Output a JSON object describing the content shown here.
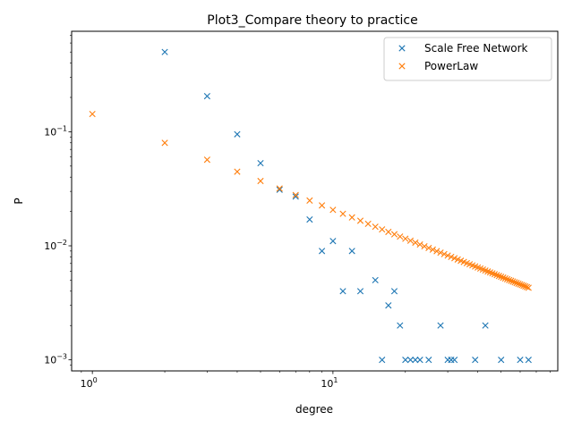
{
  "chart_data": {
    "type": "scatter",
    "title": "Plot3_Compare theory to practice",
    "xlabel": "degree",
    "ylabel": "P",
    "xscale": "log",
    "yscale": "log",
    "xlim": [
      0.82,
      86
    ],
    "ylim": [
      0.0008,
      0.76
    ],
    "grid": false,
    "legend_position": "top-right",
    "xticks": [
      {
        "value": 1,
        "base": "10",
        "exp": "0"
      },
      {
        "value": 10,
        "base": "10",
        "exp": "1"
      }
    ],
    "yticks": [
      {
        "value": 0.001,
        "base": "10",
        "exp": "−3"
      },
      {
        "value": 0.01,
        "base": "10",
        "exp": "−2"
      },
      {
        "value": 0.1,
        "base": "10",
        "exp": "−1"
      }
    ],
    "series": [
      {
        "name": "Scale Free Network",
        "color": "#1f77b4",
        "marker": "x",
        "points": [
          [
            2,
            0.5
          ],
          [
            3,
            0.205
          ],
          [
            4,
            0.095
          ],
          [
            5,
            0.053
          ],
          [
            6,
            0.031
          ],
          [
            7,
            0.027
          ],
          [
            8,
            0.017
          ],
          [
            9,
            0.009
          ],
          [
            10,
            0.011
          ],
          [
            11,
            0.004
          ],
          [
            12,
            0.009
          ],
          [
            13,
            0.004
          ],
          [
            15,
            0.005
          ],
          [
            16,
            0.001
          ],
          [
            17,
            0.003
          ],
          [
            18,
            0.004
          ],
          [
            19,
            0.002
          ],
          [
            20,
            0.001
          ],
          [
            21,
            0.001
          ],
          [
            22,
            0.001
          ],
          [
            23,
            0.001
          ],
          [
            25,
            0.001
          ],
          [
            28,
            0.002
          ],
          [
            30,
            0.001
          ],
          [
            31,
            0.001
          ],
          [
            32,
            0.001
          ],
          [
            39,
            0.001
          ],
          [
            43,
            0.002
          ],
          [
            50,
            0.001
          ],
          [
            60,
            0.001
          ],
          [
            65,
            0.001
          ]
        ]
      },
      {
        "name": "PowerLaw",
        "color": "#ff7f0e",
        "marker": "x",
        "formula_coefficient": 0.143,
        "formula_exponent": -0.84,
        "x_range": [
          1,
          65
        ]
      }
    ]
  }
}
